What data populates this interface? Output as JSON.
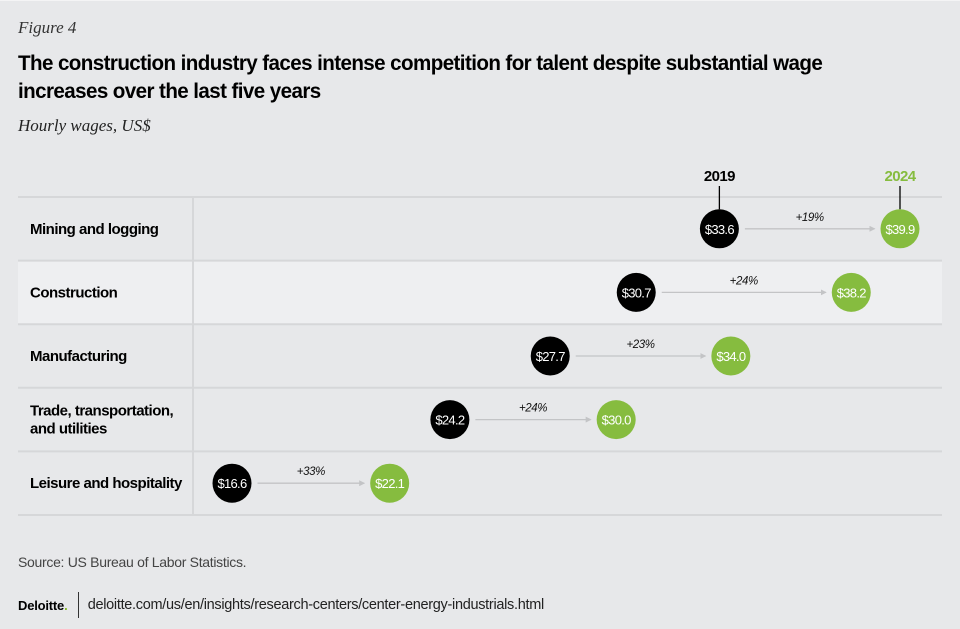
{
  "figure_label": "Figure 4",
  "title": "The construction industry faces intense competition for talent despite substantial wage increases over the last five years",
  "subtitle": "Hourly wages, US$",
  "colors": {
    "year_start": "#000000",
    "year_end": "#86bc3f",
    "arrow": "#c3c4c6",
    "grid": "#d6d7d9",
    "highlight_row": "#eeeff1"
  },
  "chart_data": {
    "type": "dumbbell",
    "title": "The construction industry faces intense competition for talent despite substantial wage increases over the last five years",
    "ylabel": "",
    "xlabel": "Hourly wages, US$",
    "series_labels": [
      "2019",
      "2024"
    ],
    "xlim": [
      16.6,
      39.9
    ],
    "highlighted_category": "Construction",
    "categories": [
      "Mining and logging",
      "Construction",
      "Manufacturing",
      "Trade, transportation, and utilities",
      "Leisure and hospitality"
    ],
    "category_lines": [
      [
        "Mining and logging"
      ],
      [
        "Construction"
      ],
      [
        "Manufacturing"
      ],
      [
        "Trade, transportation,",
        "and utilities"
      ],
      [
        "Leisure and hospitality"
      ]
    ],
    "series": [
      {
        "name": "2019",
        "values": [
          33.6,
          30.7,
          27.7,
          24.2,
          16.6
        ],
        "labels": [
          "$33.6",
          "$30.7",
          "$27.7",
          "$24.2",
          "$16.6"
        ]
      },
      {
        "name": "2024",
        "values": [
          39.9,
          38.2,
          34.0,
          30.0,
          22.1
        ],
        "labels": [
          "$39.9",
          "$38.2",
          "$34.0",
          "$30.0",
          "$22.1"
        ]
      }
    ],
    "changes": [
      "+19%",
      "+24%",
      "+23%",
      "+24%",
      "+33%"
    ]
  },
  "source": "Source: US Bureau of Labor Statistics.",
  "footer": {
    "logo": "Deloitte",
    "logo_dot": ".",
    "url": "deloitte.com/us/en/insights/research-centers/center-energy-industrials.html"
  }
}
